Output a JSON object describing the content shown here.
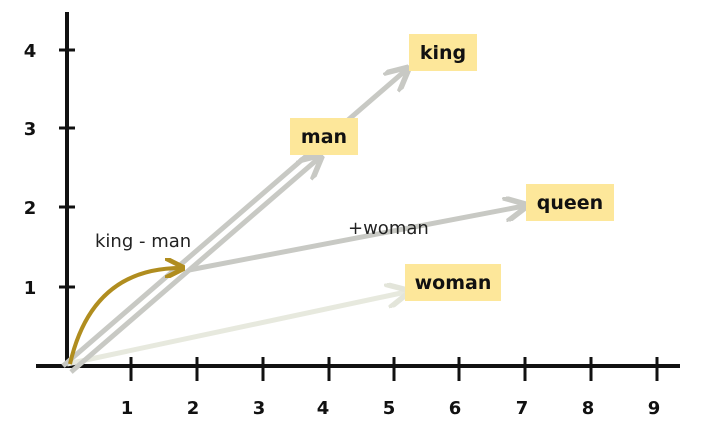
{
  "x_ticks": [
    "1",
    "2",
    "3",
    "4",
    "5",
    "6",
    "7",
    "8",
    "9"
  ],
  "y_ticks": [
    "1",
    "2",
    "3",
    "4"
  ],
  "words": {
    "king": "king",
    "man": "man",
    "queen": "queen",
    "woman": "woman"
  },
  "annotations": {
    "difference": "king - man",
    "addition": "+woman"
  },
  "colors": {
    "label_background": "#fde79a",
    "arrow": "#c8c9c4",
    "woman_arrow": "#e7e9de",
    "difference_arc": "#b08d1f",
    "axis": "#111111"
  }
}
